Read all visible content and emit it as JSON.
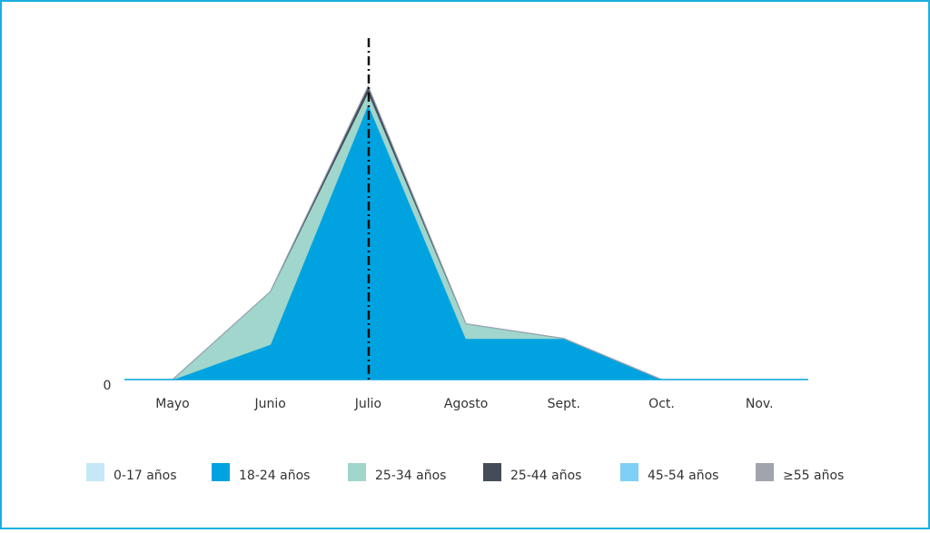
{
  "chart_data": {
    "type": "area",
    "stacked": true,
    "categories": [
      "Mayo",
      "Junio",
      "Julio",
      "Agosto",
      "Sept.",
      "Oct.",
      "Nov."
    ],
    "series": [
      {
        "name": "0-17 años",
        "color": "#c5e8f8",
        "values": [
          0,
          0,
          0,
          0,
          0,
          0,
          0
        ]
      },
      {
        "name": "18-24 años",
        "color": "#00a3e0",
        "values": [
          0,
          12,
          94,
          14,
          14,
          0,
          0
        ]
      },
      {
        "name": "25-34 años",
        "color": "#a0d6cc",
        "values": [
          0,
          18,
          4,
          5,
          0,
          0,
          0
        ]
      },
      {
        "name": "25-44 años",
        "color": "#444c5a",
        "values": [
          0,
          0,
          2,
          0,
          0,
          0,
          0
        ]
      },
      {
        "name": "45-54 años",
        "color": "#7fd0f5",
        "values": [
          0,
          0,
          0,
          0,
          0,
          0,
          0
        ]
      },
      {
        "name": "≥55 años",
        "color": "#a1a3ad",
        "values": [
          0,
          0,
          0,
          0,
          0,
          0,
          0
        ]
      }
    ],
    "ylim": [
      0,
      100
    ],
    "yticks": [
      0
    ],
    "grid": false,
    "legend": "bottom"
  }
}
